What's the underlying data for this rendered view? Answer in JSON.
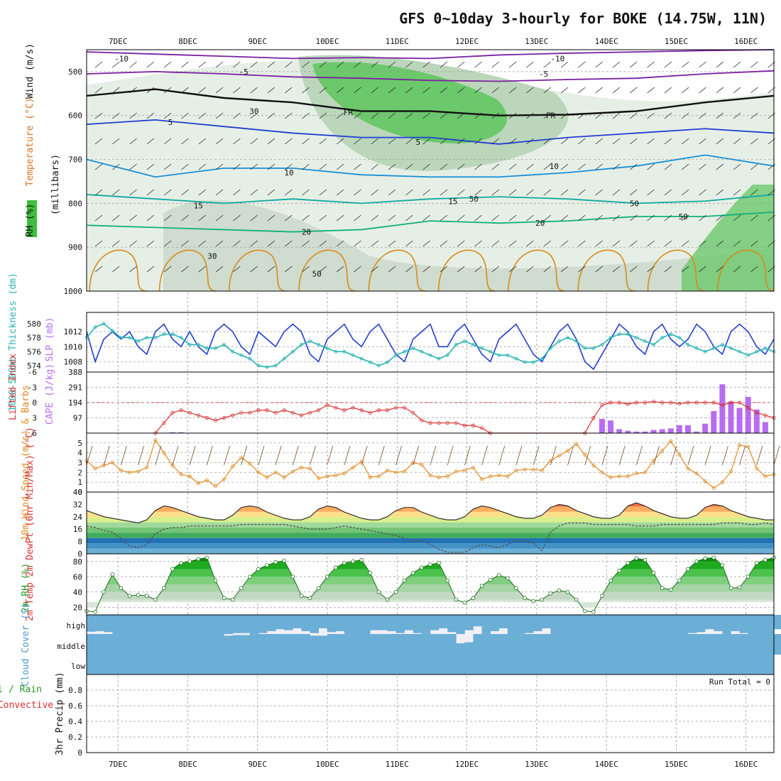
{
  "header": {
    "title": "GFS 0~10day 3-hourly for BOKE (14.75W, 11N)"
  },
  "colors": {
    "temp_line": "#7a1fa2",
    "temp_blue": "#1f3fcf",
    "temp_cyan": "#1a8fd6",
    "temp_teal": "#12a89e",
    "temp_green": "#12b07a",
    "temp_orange": "#d98a1a",
    "freezing": "#111111",
    "rh_band": "#3fbf3f",
    "slp": "#1f3fcf",
    "thickness": "#26b3b3",
    "lifted": "#d93030",
    "cape": "#b76cf2",
    "wind10": "#e08a20",
    "cloud": "#6baed6",
    "grid": "#999999"
  },
  "chart_data": [
    {
      "id": "upper_air",
      "type": "contour",
      "title": "Temperature (°C) / Wind (m/s) / RH (%)",
      "ylabel_parts": [
        "RH (%)",
        "Temperature (°C)",
        "Wind (m/s)",
        "(millibars)"
      ],
      "ylim": [
        1000,
        450
      ],
      "yticks": [
        500,
        600,
        700,
        800,
        900,
        1000
      ],
      "contour_labels": [
        {
          "label": "-10",
          "day": 0.05,
          "p": 470
        },
        {
          "label": "-10",
          "day": 6.3,
          "p": 470
        },
        {
          "label": "-5",
          "day": 1.8,
          "p": 500
        },
        {
          "label": "-5",
          "day": 6.1,
          "p": 505
        },
        {
          "label": "FR",
          "day": 3.3,
          "p": 592
        },
        {
          "label": "FR",
          "day": 6.2,
          "p": 600
        },
        {
          "label": "5",
          "day": 0.75,
          "p": 615
        },
        {
          "label": "5",
          "day": 4.3,
          "p": 660
        },
        {
          "label": "10",
          "day": 2.45,
          "p": 730
        },
        {
          "label": "10",
          "day": 6.25,
          "p": 715
        },
        {
          "label": "15",
          "day": 1.15,
          "p": 805
        },
        {
          "label": "15",
          "day": 4.8,
          "p": 795
        },
        {
          "label": "20",
          "day": 2.7,
          "p": 865
        },
        {
          "label": "20",
          "day": 6.05,
          "p": 845
        },
        {
          "label": "30",
          "day": 1.35,
          "p": 920
        },
        {
          "label": "30",
          "day": 1.95,
          "p": 590
        },
        {
          "label": "50",
          "day": 2.85,
          "p": 960
        },
        {
          "label": "50",
          "day": 5.1,
          "p": 790
        },
        {
          "label": "50",
          "day": 7.4,
          "p": 800
        },
        {
          "label": "50",
          "day": 8.1,
          "p": 830
        }
      ],
      "isotherms": [
        {
          "temp": -10,
          "color": "#7a1fa2",
          "p": [
            455,
            460,
            465,
            470,
            468,
            470,
            462,
            458,
            455,
            452,
            450
          ]
        },
        {
          "temp": -5,
          "color": "#7a1fa2",
          "p": [
            505,
            500,
            505,
            512,
            515,
            520,
            522,
            518,
            515,
            505,
            498
          ]
        },
        {
          "temp": 0,
          "color": "#111111",
          "p": [
            555,
            540,
            560,
            570,
            590,
            590,
            600,
            598,
            590,
            570,
            555
          ]
        },
        {
          "temp": 5,
          "color": "#1f3fcf",
          "p": [
            620,
            610,
            625,
            640,
            650,
            650,
            665,
            650,
            640,
            630,
            640
          ]
        },
        {
          "temp": 10,
          "color": "#1a8fd6",
          "p": [
            700,
            740,
            720,
            720,
            735,
            740,
            740,
            730,
            715,
            690,
            715
          ]
        },
        {
          "temp": 15,
          "color": "#12a89e",
          "p": [
            780,
            790,
            800,
            790,
            800,
            790,
            785,
            790,
            800,
            795,
            780
          ]
        },
        {
          "temp": 20,
          "color": "#12b07a",
          "p": [
            850,
            855,
            860,
            865,
            860,
            840,
            845,
            840,
            830,
            830,
            820
          ]
        }
      ]
    },
    {
      "id": "slp_thickness",
      "type": "line",
      "ylabel_left": "1000-500mb Thickness (dm)",
      "ylabel_right": "SLP (mb)",
      "left_ticks": [
        574,
        576,
        578,
        580
      ],
      "right_ticks": [
        1008,
        1010,
        1012
      ],
      "series": [
        {
          "name": "SLP (mb)",
          "ylim": [
            1007,
            1014
          ],
          "values": [
            1012,
            1008,
            1011,
            1012,
            1011,
            1012,
            1010,
            1009,
            1012,
            1013,
            1011,
            1010,
            1012,
            1010,
            1009,
            1012,
            1013,
            1012,
            1010,
            1009,
            1012,
            1011,
            1010,
            1012,
            1013,
            1012,
            1009,
            1008,
            1011,
            1012,
            1013,
            1011,
            1010,
            1012,
            1013,
            1011,
            1009,
            1008,
            1011,
            1012,
            1013,
            1010,
            1010,
            1012,
            1013,
            1011,
            1009,
            1008,
            1011,
            1012,
            1013,
            1011,
            1009,
            1008,
            1010,
            1012,
            1013,
            1011,
            1008,
            1007,
            1009,
            1011,
            1013,
            1012,
            1010,
            1009,
            1012,
            1013,
            1011,
            1010,
            1011,
            1013,
            1012,
            1010,
            1009,
            1012,
            1013,
            1012,
            1010,
            1009,
            1011
          ]
        },
        {
          "name": "1000-500mb Thickness (dm)",
          "ylim": [
            573.5,
            581
          ],
          "values": [
            578,
            579.5,
            580,
            579,
            578,
            578,
            577.5,
            578,
            578,
            578.5,
            578.5,
            578,
            577,
            577,
            576.5,
            576.5,
            577,
            576,
            575.5,
            575,
            574,
            573.8,
            574,
            575,
            576,
            577,
            577.5,
            577,
            576.5,
            576,
            576,
            575.5,
            575,
            574.5,
            574,
            574.5,
            575.5,
            576,
            576.5,
            576,
            575.5,
            575,
            575.5,
            577,
            577.5,
            577,
            576.5,
            576,
            575.5,
            575.5,
            575,
            574.5,
            574.5,
            575,
            576.5,
            577.5,
            578,
            577.5,
            576.5,
            576.5,
            577,
            578,
            578.5,
            578.5,
            578,
            577.5,
            577,
            578,
            578.5,
            578,
            577,
            576.5,
            576,
            576.5,
            577,
            576.5,
            576,
            575.5,
            576,
            576.5,
            576
          ]
        }
      ]
    },
    {
      "id": "lifted_cape",
      "type": "bar+line",
      "ylabel_left": "Lifted Index",
      "ylabel_right": "CAPE (J/kg)",
      "left_ticks": [
        "-6",
        "-3",
        "0",
        "3",
        "6"
      ],
      "right_ticks": [
        "388",
        "291",
        "194",
        "97"
      ],
      "lifted_index": {
        "ylim": [
          6,
          -6
        ],
        "values": [
          null,
          null,
          null,
          null,
          null,
          null,
          null,
          null,
          6,
          4,
          2,
          1.5,
          2,
          2.5,
          3,
          3.5,
          3,
          2.5,
          2,
          2,
          1.5,
          1.5,
          2,
          1.5,
          2,
          2.5,
          2,
          1.5,
          0.5,
          1,
          1.5,
          1,
          1.5,
          2,
          1.5,
          1.5,
          1,
          1,
          2,
          3.5,
          4,
          4,
          4,
          4,
          4.5,
          4.5,
          5,
          6,
          null,
          null,
          null,
          null,
          null,
          null,
          null,
          null,
          null,
          null,
          6,
          3,
          0.5,
          0,
          0,
          0.3,
          0,
          0,
          -0.2,
          0,
          0,
          0.2,
          0,
          0,
          0,
          0,
          0.5,
          0,
          0,
          1,
          2,
          2.5,
          3
        ]
      },
      "cape": {
        "ylim": [
          0,
          388
        ],
        "values": [
          0,
          0,
          0,
          0,
          0,
          0,
          0,
          0,
          0,
          0,
          5,
          5,
          0,
          0,
          0,
          0,
          0,
          0,
          0,
          0,
          0,
          0,
          0,
          0,
          0,
          0,
          0,
          0,
          0,
          0,
          0,
          0,
          0,
          0,
          0,
          0,
          0,
          0,
          0,
          0,
          0,
          0,
          0,
          0,
          0,
          0,
          0,
          0,
          0,
          0,
          0,
          0,
          0,
          0,
          0,
          0,
          0,
          0,
          0,
          0,
          90,
          80,
          25,
          15,
          10,
          10,
          20,
          25,
          30,
          50,
          50,
          10,
          60,
          140,
          310,
          200,
          160,
          230,
          150,
          70,
          0
        ]
      }
    },
    {
      "id": "wind10m",
      "type": "line",
      "ylabel": "10m Wind Speed (m/s) & Barbs",
      "ylim": [
        0,
        6
      ],
      "yticks": [
        0,
        1,
        2,
        3,
        4,
        5
      ],
      "values": [
        3.2,
        2.4,
        2.7,
        3.0,
        2.2,
        2.0,
        2.1,
        2.5,
        5.3,
        4.0,
        2.7,
        1.8,
        1.6,
        0.9,
        1.2,
        0.6,
        1.3,
        2.6,
        3.5,
        2.9,
        2.0,
        1.5,
        2.0,
        1.5,
        2.1,
        2.5,
        2.4,
        1.4,
        1.6,
        1.7,
        1.9,
        2.5,
        3.1,
        1.5,
        1.6,
        2.2,
        2.0,
        2.1,
        3.0,
        2.8,
        1.7,
        1.5,
        1.6,
        2.1,
        2.2,
        2.5,
        1.3,
        1.6,
        1.7,
        1.6,
        2.2,
        2.3,
        2.3,
        2.2,
        3.2,
        3.7,
        4.2,
        4.9,
        3.8,
        2.7,
        2.0,
        1.5,
        1.6,
        1.6,
        1.9,
        2.0,
        3.2,
        4.2,
        5.2,
        3.8,
        2.4,
        1.9,
        1.1,
        0.4,
        1.0,
        2.1,
        4.8,
        4.6,
        2.4,
        1.6,
        1.8
      ]
    },
    {
      "id": "temp2m",
      "type": "area+line",
      "ylabel": "2m Temp 2m DewPt (6hr Min/Max) (°C)",
      "ylim": [
        0,
        40
      ],
      "yticks": [
        0,
        8,
        16,
        24,
        32,
        40
      ],
      "temperature": [
        28,
        26,
        24,
        23,
        22,
        21,
        20,
        22,
        28,
        31,
        30,
        28,
        26,
        24,
        23,
        22,
        22,
        25,
        30,
        31,
        30,
        27,
        25,
        23,
        22,
        22,
        24,
        29,
        31,
        30,
        27,
        25,
        23,
        22,
        22,
        24,
        28,
        30,
        30,
        27,
        25,
        23,
        22,
        22,
        24,
        29,
        31,
        30,
        28,
        26,
        24,
        23,
        23,
        25,
        30,
        32,
        31,
        28,
        26,
        24,
        23,
        23,
        25,
        31,
        33,
        31,
        28,
        26,
        24,
        23,
        23,
        25,
        30,
        32,
        31,
        28,
        26,
        24,
        23,
        22,
        22
      ],
      "dewpoint": [
        18,
        17,
        15,
        14,
        10,
        5,
        4,
        6,
        13,
        16,
        17,
        17,
        18,
        18,
        18,
        18,
        18,
        18,
        19,
        19,
        19,
        19,
        19,
        19,
        18,
        17,
        16,
        16,
        16,
        17,
        18,
        17,
        16,
        15,
        14,
        13,
        12,
        10,
        8,
        9,
        6,
        3,
        1,
        1,
        1,
        4,
        6,
        5,
        4,
        6,
        9,
        8,
        7,
        2,
        14,
        18,
        20,
        20,
        20,
        19,
        19,
        19,
        19,
        19,
        18,
        18,
        18,
        19,
        19,
        19,
        19,
        19,
        19,
        19,
        20,
        20,
        20,
        19,
        19,
        20,
        19
      ]
    },
    {
      "id": "rh2m",
      "type": "area",
      "ylabel": "2m RH (%)",
      "ylim": [
        10,
        90
      ],
      "yticks": [
        20,
        40,
        60,
        80
      ],
      "values": [
        15,
        14,
        40,
        63,
        45,
        35,
        36,
        35,
        30,
        45,
        70,
        78,
        80,
        83,
        85,
        55,
        32,
        30,
        45,
        60,
        70,
        75,
        79,
        81,
        60,
        35,
        32,
        45,
        60,
        72,
        78,
        80,
        82,
        65,
        40,
        30,
        40,
        55,
        65,
        72,
        76,
        78,
        55,
        30,
        26,
        32,
        48,
        56,
        62,
        58,
        45,
        32,
        28,
        30,
        38,
        42,
        40,
        30,
        15,
        14,
        35,
        55,
        68,
        78,
        84,
        82,
        65,
        45,
        43,
        55,
        70,
        80,
        84,
        85,
        75,
        45,
        46,
        60,
        78,
        82,
        85
      ]
    },
    {
      "id": "cloud_cover",
      "type": "stacked",
      "ylabel": "Cloud Cover (%)",
      "levels": [
        "high",
        "middle",
        "low"
      ],
      "high": [
        88,
        85,
        90,
        100,
        100,
        100,
        100,
        100,
        100,
        100,
        100,
        100,
        100,
        100,
        100,
        100,
        100,
        95,
        95,
        100,
        95,
        85,
        75,
        80,
        70,
        85,
        95,
        70,
        90,
        85,
        100,
        100,
        100,
        80,
        80,
        85,
        95,
        80,
        95,
        100,
        80,
        70,
        90,
        100,
        80,
        60,
        100,
        85,
        70,
        100,
        100,
        95,
        85,
        70,
        100,
        100,
        100,
        100,
        100,
        100,
        100,
        100,
        100,
        100,
        100,
        100,
        100,
        100,
        100,
        100,
        95,
        90,
        75,
        85,
        100,
        85,
        95,
        100,
        100,
        100,
        75
      ],
      "middle": [
        100,
        100,
        100,
        100,
        100,
        100,
        100,
        100,
        100,
        100,
        100,
        100,
        100,
        100,
        100,
        100,
        92,
        95,
        95,
        100,
        100,
        100,
        100,
        100,
        100,
        100,
        92,
        92,
        100,
        100,
        100,
        100,
        100,
        100,
        100,
        100,
        100,
        100,
        100,
        100,
        100,
        100,
        100,
        55,
        60,
        100,
        100,
        100,
        100,
        100,
        100,
        100,
        100,
        100,
        100,
        100,
        100,
        100,
        100,
        100,
        100,
        100,
        100,
        100,
        100,
        100,
        100,
        100,
        100,
        100,
        100,
        100,
        100,
        100,
        100,
        100,
        100,
        100,
        100,
        100,
        100
      ]
    },
    {
      "id": "precip3h",
      "type": "bar",
      "ylabel_parts": [
        "Total / Rain",
        "Convective",
        "3hr Precip (mm)"
      ],
      "annotation": "Run Total = 0",
      "ylim": [
        0,
        1
      ],
      "yticks": [
        "0",
        "0.2",
        "0.4",
        "0.6",
        "0.8"
      ],
      "values": []
    }
  ],
  "x_axis": {
    "labels": [
      "7DEC",
      "8DEC",
      "9DEC",
      "10DEC",
      "11DEC",
      "12DEC",
      "13DEC",
      "14DEC",
      "15DEC",
      "16DEC"
    ],
    "day_offset_start": 0.45,
    "span_days": 9.85
  }
}
